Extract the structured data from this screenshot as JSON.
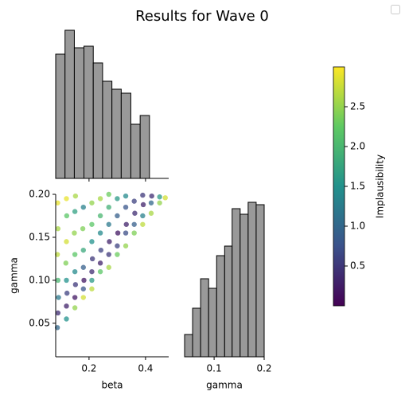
{
  "title": "Results for Wave 0",
  "chart_data": [
    {
      "type": "histogram",
      "color": "#999999",
      "bins": [
        0.082,
        0.115,
        0.148,
        0.182,
        0.215,
        0.248,
        0.281,
        0.314,
        0.348,
        0.381,
        0.414
      ],
      "values": [
        156,
        186,
        164,
        166,
        145,
        122,
        112,
        107,
        68,
        79
      ],
      "xlim": [
        0.082,
        0.482
      ],
      "xticks": [
        0.2,
        0.4
      ],
      "tick_labels": false,
      "ylim": [
        0,
        204
      ]
    },
    {
      "type": "scatter",
      "xlabel": "beta",
      "ylabel": "gamma",
      "colormap": "viridis",
      "xlim": [
        0.082,
        0.482
      ],
      "ylim": [
        0.011,
        0.2
      ],
      "xticks": [
        0.2,
        0.4
      ],
      "yticks": [
        0.05,
        {
          "value": 0.1,
          "label": "0.10"
        },
        0.15,
        {
          "value": 0.2,
          "label": "0.20"
        }
      ],
      "x": [
        0.088,
        0.09,
        0.092,
        0.09,
        0.088,
        0.09,
        0.089,
        0.12,
        0.12,
        0.122,
        0.12,
        0.118,
        0.12,
        0.121,
        0.12,
        0.15,
        0.15,
        0.152,
        0.15,
        0.15,
        0.148,
        0.15,
        0.152,
        0.18,
        0.18,
        0.182,
        0.18,
        0.18,
        0.178,
        0.18,
        0.21,
        0.21,
        0.21,
        0.212,
        0.21,
        0.21,
        0.21,
        0.24,
        0.24,
        0.242,
        0.24,
        0.24,
        0.24,
        0.27,
        0.27,
        0.272,
        0.27,
        0.27,
        0.27,
        0.3,
        0.3,
        0.302,
        0.3,
        0.3,
        0.33,
        0.33,
        0.332,
        0.33,
        0.33,
        0.36,
        0.36,
        0.362,
        0.36,
        0.39,
        0.39,
        0.392,
        0.39,
        0.42,
        0.42,
        0.422,
        0.45,
        0.45,
        0.47
      ],
      "y": [
        0.045,
        0.062,
        0.08,
        0.1,
        0.13,
        0.16,
        0.19,
        0.055,
        0.07,
        0.085,
        0.1,
        0.12,
        0.145,
        0.175,
        0.195,
        0.068,
        0.08,
        0.095,
        0.11,
        0.13,
        0.155,
        0.18,
        0.198,
        0.08,
        0.09,
        0.1,
        0.115,
        0.135,
        0.16,
        0.185,
        0.09,
        0.1,
        0.11,
        0.125,
        0.145,
        0.165,
        0.19,
        0.11,
        0.12,
        0.135,
        0.155,
        0.175,
        0.195,
        0.115,
        0.13,
        0.145,
        0.165,
        0.185,
        0.2,
        0.13,
        0.14,
        0.155,
        0.175,
        0.195,
        0.14,
        0.155,
        0.165,
        0.185,
        0.198,
        0.155,
        0.165,
        0.178,
        0.192,
        0.165,
        0.175,
        0.188,
        0.199,
        0.178,
        0.19,
        0.198,
        0.19,
        0.197,
        0.196
      ],
      "c": [
        1.0,
        0.4,
        1.2,
        2.0,
        2.7,
        2.6,
        2.9,
        1.5,
        0.3,
        0.6,
        1.5,
        2.4,
        2.8,
        2.2,
        2.9,
        2.5,
        0.2,
        0.5,
        1.4,
        2.2,
        2.5,
        1.7,
        2.6,
        2.8,
        0.8,
        0.2,
        0.9,
        1.8,
        2.4,
        1.3,
        2.7,
        1.6,
        0.4,
        0.5,
        1.5,
        2.2,
        2.5,
        2.2,
        0.3,
        0.6,
        1.4,
        2.0,
        2.6,
        2.6,
        0.5,
        0.3,
        1.2,
        1.9,
        2.3,
        2.3,
        0.6,
        0.2,
        0.9,
        1.6,
        2.5,
        0.7,
        0.3,
        0.8,
        1.4,
        2.4,
        0.9,
        0.4,
        0.6,
        2.7,
        1.3,
        0.3,
        0.5,
        2.6,
        1.0,
        0.4,
        2.5,
        1.6,
        2.8
      ],
      "colorbar": {
        "label": "Implausibility",
        "lim": [
          0,
          3
        ],
        "ticks": [
          0.5,
          {
            "value": 1,
            "label": "1.0"
          },
          1.5,
          {
            "value": 2,
            "label": "2.0"
          },
          2.5
        ]
      }
    },
    {
      "type": "histogram",
      "color": "#999999",
      "xlabel": "gamma",
      "bins": [
        0.041,
        0.057,
        0.073,
        0.089,
        0.105,
        0.121,
        0.136,
        0.152,
        0.168,
        0.184,
        0.2
      ],
      "values": [
        28,
        61,
        98,
        86,
        127,
        139,
        186,
        179,
        194,
        191
      ],
      "xlim": [
        0.041,
        0.2
      ],
      "xticks": [
        0.1,
        0.2
      ],
      "ylim": [
        0,
        204
      ]
    }
  ]
}
